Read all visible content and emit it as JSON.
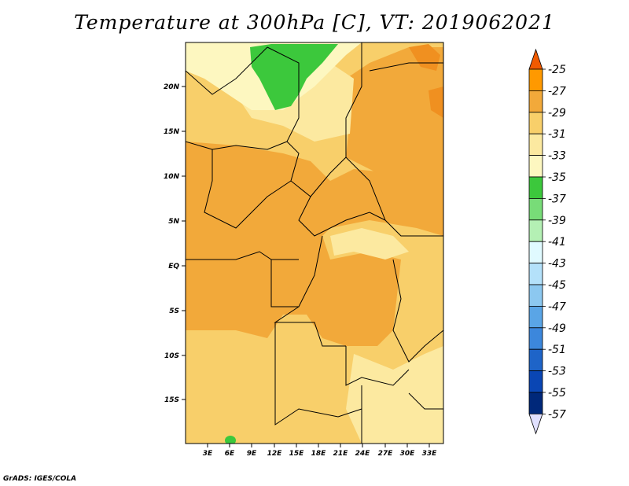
{
  "title": "Temperature at 300hPa [C], VT: 2019062021",
  "credit": "GrADS: IGES/COLA",
  "map": {
    "lat_labels": [
      "20N",
      "15N",
      "10N",
      "5N",
      "EQ",
      "5S",
      "10S",
      "15S"
    ],
    "lon_labels": [
      "3E",
      "6E",
      "9E",
      "12E",
      "15E",
      "18E",
      "21E",
      "24E",
      "27E",
      "30E",
      "33E"
    ]
  },
  "colorbar": {
    "labels": [
      "-25",
      "-27",
      "-29",
      "-31",
      "-33",
      "-35",
      "-37",
      "-39",
      "-41",
      "-43",
      "-45",
      "-47",
      "-49",
      "-51",
      "-53",
      "-55",
      "-57"
    ],
    "colors": [
      "#f05a00",
      "#ff9900",
      "#f2a93a",
      "#f8cf6a",
      "#fce9a0",
      "#fdf7c0",
      "#3cc83c",
      "#78dc78",
      "#b4f0b4",
      "#e0faff",
      "#b4e1fa",
      "#8cc8f0",
      "#5aa5e6",
      "#3c87dc",
      "#1e64c8",
      "#0a46b4",
      "#00287a"
    ],
    "bottom_arrow_color": "#e0e0ff"
  }
}
